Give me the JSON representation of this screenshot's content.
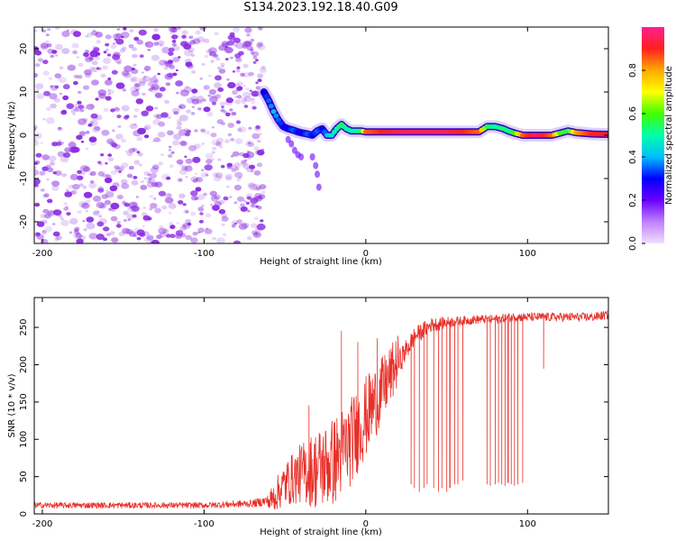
{
  "title": "S134.2023.192.18.40.G09",
  "colors": {
    "snr_line": "#e8302a",
    "speckle": "#8a2be2",
    "colorbar_stops": [
      "#f0e0ff",
      "#c080ff",
      "#6a00ff",
      "#0000ff",
      "#00bfff",
      "#00ffaa",
      "#40ff00",
      "#ffff00",
      "#ffaa00",
      "#ff2020",
      "#ff2090"
    ]
  },
  "chart_data": [
    {
      "type": "heatmap",
      "xlabel": "Height of straight line (km)",
      "ylabel": "Frequency (Hz)",
      "xlim": [
        -205,
        150
      ],
      "ylim": [
        -25,
        25
      ],
      "xticks": [
        -200,
        -100,
        0,
        100
      ],
      "yticks": [
        -20,
        -10,
        0,
        10,
        20
      ],
      "colorbar": {
        "label": "Normalized spectral amplitude",
        "range": [
          0.0,
          1.0
        ],
        "ticks": [
          "0.0",
          "0.2",
          "0.4",
          "0.6",
          "0.8"
        ]
      },
      "noise_region_x": [
        -205,
        -63
      ],
      "signal_track": {
        "x": [
          -63,
          -60,
          -57,
          -54,
          -51,
          -48,
          -45,
          -42,
          -39,
          -36,
          -33,
          -30,
          -27,
          -24,
          -21,
          -18,
          -15,
          -12,
          -9,
          -6,
          -3,
          0,
          10,
          20,
          30,
          40,
          50,
          60,
          70,
          75,
          80,
          85,
          88,
          92,
          97,
          105,
          110,
          115,
          120,
          125,
          130,
          140,
          150
        ],
        "y": [
          10,
          8,
          5.5,
          3.5,
          2,
          1.5,
          1.2,
          0.8,
          0.5,
          0.3,
          0,
          1,
          1.5,
          0,
          0,
          1.5,
          2.5,
          1.5,
          1,
          1,
          1,
          0.8,
          0.8,
          0.8,
          0.8,
          0.8,
          0.8,
          0.8,
          0.8,
          2,
          2,
          1.5,
          1,
          0.5,
          0,
          0,
          0,
          0,
          0.5,
          1,
          0.6,
          0.3,
          0.2
        ],
        "amplitude": [
          0.3,
          0.35,
          0.4,
          0.35,
          0.3,
          0.3,
          0.35,
          0.3,
          0.3,
          0.35,
          0.3,
          0.35,
          0.3,
          0.4,
          0.45,
          0.5,
          0.55,
          0.5,
          0.5,
          0.5,
          0.55,
          0.85,
          0.9,
          0.95,
          0.95,
          0.95,
          0.95,
          0.9,
          0.85,
          0.55,
          0.5,
          0.55,
          0.5,
          0.6,
          0.85,
          0.95,
          0.9,
          0.85,
          0.6,
          0.55,
          0.8,
          0.9,
          0.9
        ]
      },
      "scatter_branches": [
        {
          "x": [
            -48,
            -46,
            -44,
            -42,
            -40
          ],
          "y": [
            -1,
            -2,
            -3.5,
            -4.5,
            -5
          ]
        },
        {
          "x": [
            -33,
            -31,
            -30,
            -29
          ],
          "y": [
            -5,
            -7,
            -9,
            -12
          ]
        }
      ]
    },
    {
      "type": "line",
      "xlabel": "Height of straight line (km)",
      "ylabel": "SNR (10 * v/v)",
      "xlim": [
        -205,
        150
      ],
      "ylim": [
        0,
        290
      ],
      "xticks": [
        -200,
        -100,
        0,
        100
      ],
      "yticks": [
        0,
        50,
        100,
        150,
        200,
        250
      ],
      "series": [
        {
          "baseline_x": [
            -205,
            -150,
            -100,
            -70,
            -60,
            -50,
            -40,
            -30,
            -20,
            -10,
            0,
            10,
            20,
            30,
            40,
            50,
            60,
            70,
            80,
            90,
            100,
            110,
            120,
            130,
            140,
            150
          ],
          "baseline_y": [
            10,
            10,
            10,
            12,
            15,
            40,
            55,
            60,
            70,
            95,
            130,
            165,
            205,
            240,
            255,
            258,
            260,
            262,
            262,
            265,
            265,
            265,
            265,
            265,
            265,
            268
          ],
          "noise_amplitude": [
            8,
            8,
            8,
            10,
            15,
            30,
            40,
            55,
            60,
            60,
            55,
            45,
            35,
            25,
            20,
            15,
            12,
            12,
            12,
            12,
            12,
            12,
            12,
            12,
            12,
            12
          ],
          "dropouts": {
            "x": [
              28,
              30,
              33,
              36,
              38,
              42,
              45,
              47,
              50,
              52,
              55,
              57,
              60,
              75,
              77,
              80,
              82,
              84,
              86,
              88,
              90,
              92,
              94,
              97
            ],
            "y": [
              40,
              35,
              30,
              35,
              40,
              35,
              30,
              35,
              30,
              35,
              40,
              40,
              45,
              40,
              38,
              40,
              42,
              40,
              38,
              42,
              40,
              38,
              40,
              42
            ]
          },
          "spikes": {
            "x": [
              -35,
              -15,
              -5,
              7,
              110
            ],
            "y": [
              145,
              245,
              230,
              235,
              195
            ]
          }
        }
      ]
    }
  ]
}
